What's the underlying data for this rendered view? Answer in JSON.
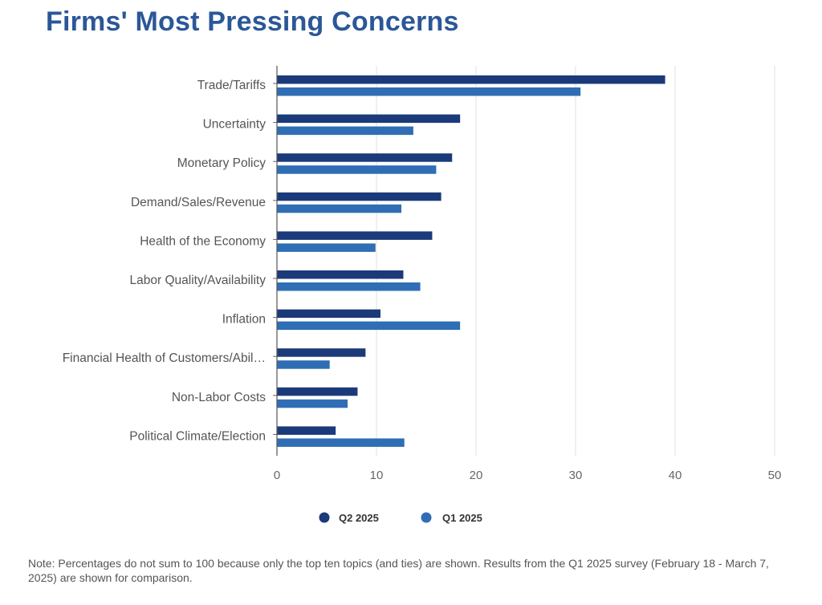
{
  "title": "Firms' Most Pressing Concerns",
  "note": "Note: Percentages do not sum to 100 because only the top ten topics (and ties) are shown. Results from the Q1 2025 survey (February 18 - March 7, 2025) are shown for comparison.",
  "colors": {
    "title": "#2b5797",
    "series_q2": "#1b3a7a",
    "series_q1": "#2f6eb5"
  },
  "chart_data": {
    "type": "bar",
    "orientation": "horizontal",
    "categories": [
      "Trade/Tariffs",
      "Uncertainty",
      "Monetary Policy",
      "Demand/Sales/Revenue",
      "Health of the Economy",
      "Labor Quality/Availability",
      "Inflation",
      "Financial Health of Customers/Abil…",
      "Non-Labor Costs",
      "Political Climate/Election"
    ],
    "series": [
      {
        "name": "Q2 2025",
        "color": "#1b3a7a",
        "values": [
          39.0,
          18.4,
          17.6,
          16.5,
          15.6,
          12.7,
          10.4,
          8.9,
          8.1,
          5.9
        ]
      },
      {
        "name": "Q1 2025",
        "color": "#2f6eb5",
        "values": [
          30.5,
          13.7,
          16.0,
          12.5,
          9.9,
          14.4,
          18.4,
          5.3,
          7.1,
          12.8
        ]
      }
    ],
    "xticks": [
      0,
      10,
      20,
      30,
      40,
      50
    ],
    "xlim": [
      0,
      50
    ],
    "grid": true,
    "legend": "bottom-center"
  }
}
